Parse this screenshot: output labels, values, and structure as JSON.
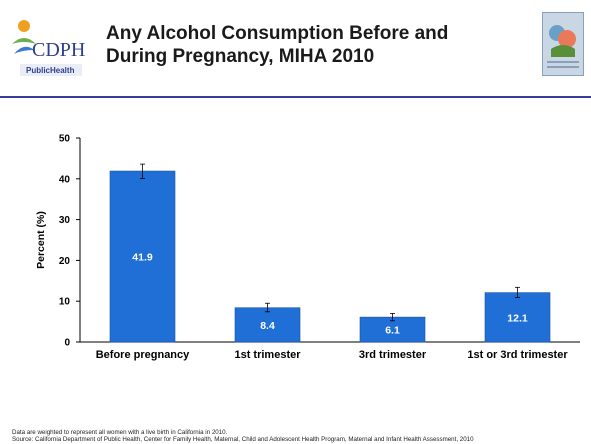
{
  "header": {
    "title_line1": "Any Alcohol Consumption Before and",
    "title_line2": "During Pregnancy, MIHA 2010",
    "logo_left": {
      "icon": "cdph-logo-icon",
      "text": "CDPH",
      "subtext": "PublicHealth"
    },
    "logo_right": {
      "icon": "miha-logo-icon"
    }
  },
  "chart_data": {
    "type": "bar",
    "categories": [
      "Before pregnancy",
      "1st trimester",
      "3rd trimester",
      "1st or 3rd trimester"
    ],
    "values": [
      41.9,
      8.4,
      6.1,
      12.1
    ],
    "error_bars": [
      {
        "low": 40.1,
        "high": 43.6
      },
      {
        "low": 7.4,
        "high": 9.5
      },
      {
        "low": 5.2,
        "high": 7.0
      },
      {
        "low": 10.9,
        "high": 13.4
      }
    ],
    "data_labels": [
      "41.9",
      "8.4",
      "6.1",
      "12.1"
    ],
    "title": "",
    "xlabel": "",
    "ylabel": "Percent (%)",
    "ylim": [
      0,
      50
    ],
    "yticks": [
      0,
      10,
      20,
      30,
      40,
      50
    ],
    "bar_color": "#1f6fd6",
    "grid": false,
    "legend": "none"
  },
  "footnote": {
    "line1": "Data are weighted to represent all women with a live birth in California in 2010.",
    "line2": "Source: California Department of Public Health, Center for Family Health, Maternal, Child and Adolescent Health Program, Maternal and Infant Health Assessment, 2010"
  }
}
